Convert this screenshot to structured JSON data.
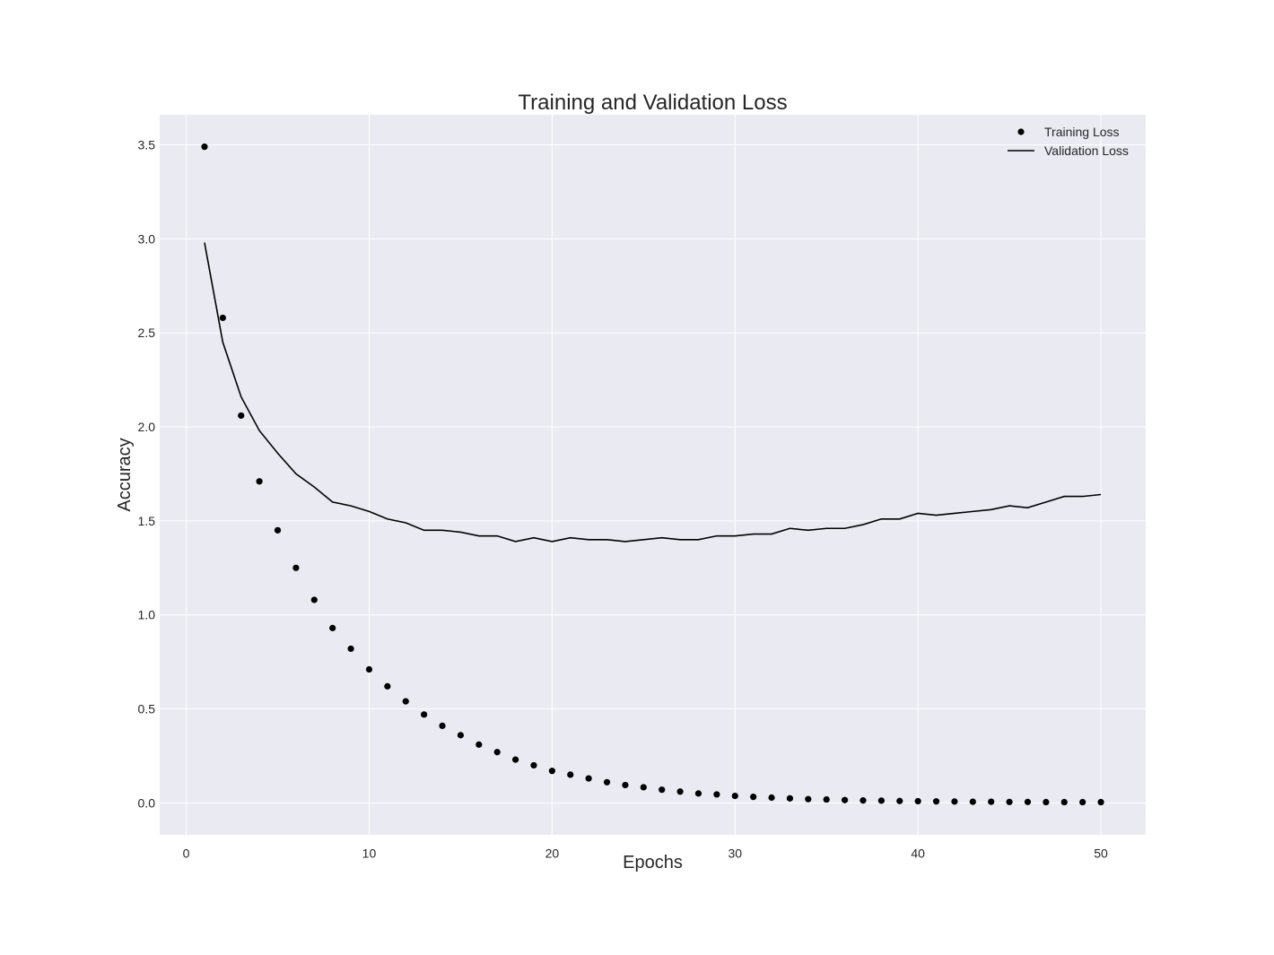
{
  "chart_data": {
    "type": "line",
    "title": "Training and Validation Loss",
    "xlabel": "Epochs",
    "ylabel": "Accuracy",
    "xlim": [
      -1.45,
      52.45
    ],
    "ylim": [
      -0.17,
      3.66
    ],
    "xticks": [
      0,
      10,
      20,
      30,
      40,
      50
    ],
    "yticks": [
      0.0,
      0.5,
      1.0,
      1.5,
      2.0,
      2.5,
      3.0,
      3.5
    ],
    "grid": true,
    "legend_position": "top-right",
    "colors": {
      "background": "#eaeaf2",
      "grid": "#ffffff",
      "series": "#000000"
    },
    "x": [
      1,
      2,
      3,
      4,
      5,
      6,
      7,
      8,
      9,
      10,
      11,
      12,
      13,
      14,
      15,
      16,
      17,
      18,
      19,
      20,
      21,
      22,
      23,
      24,
      25,
      26,
      27,
      28,
      29,
      30,
      31,
      32,
      33,
      34,
      35,
      36,
      37,
      38,
      39,
      40,
      41,
      42,
      43,
      44,
      45,
      46,
      47,
      48,
      49,
      50
    ],
    "series": [
      {
        "name": "Training Loss",
        "style": "points",
        "values": [
          3.49,
          2.58,
          2.06,
          1.71,
          1.45,
          1.25,
          1.08,
          0.93,
          0.82,
          0.71,
          0.62,
          0.54,
          0.47,
          0.41,
          0.36,
          0.31,
          0.27,
          0.23,
          0.2,
          0.17,
          0.15,
          0.13,
          0.11,
          0.095,
          0.083,
          0.07,
          0.06,
          0.05,
          0.045,
          0.037,
          0.032,
          0.028,
          0.024,
          0.02,
          0.018,
          0.015,
          0.013,
          0.012,
          0.01,
          0.009,
          0.008,
          0.007,
          0.006,
          0.006,
          0.005,
          0.005,
          0.004,
          0.004,
          0.004,
          0.004
        ]
      },
      {
        "name": "Validation Loss",
        "style": "line",
        "values": [
          2.98,
          2.45,
          2.16,
          1.98,
          1.86,
          1.75,
          1.68,
          1.6,
          1.58,
          1.55,
          1.51,
          1.49,
          1.45,
          1.45,
          1.44,
          1.42,
          1.42,
          1.39,
          1.41,
          1.39,
          1.41,
          1.4,
          1.4,
          1.39,
          1.4,
          1.41,
          1.4,
          1.4,
          1.42,
          1.42,
          1.43,
          1.43,
          1.46,
          1.45,
          1.46,
          1.46,
          1.48,
          1.51,
          1.51,
          1.54,
          1.53,
          1.54,
          1.55,
          1.56,
          1.58,
          1.57,
          1.6,
          1.63,
          1.63,
          1.64
        ]
      }
    ]
  }
}
